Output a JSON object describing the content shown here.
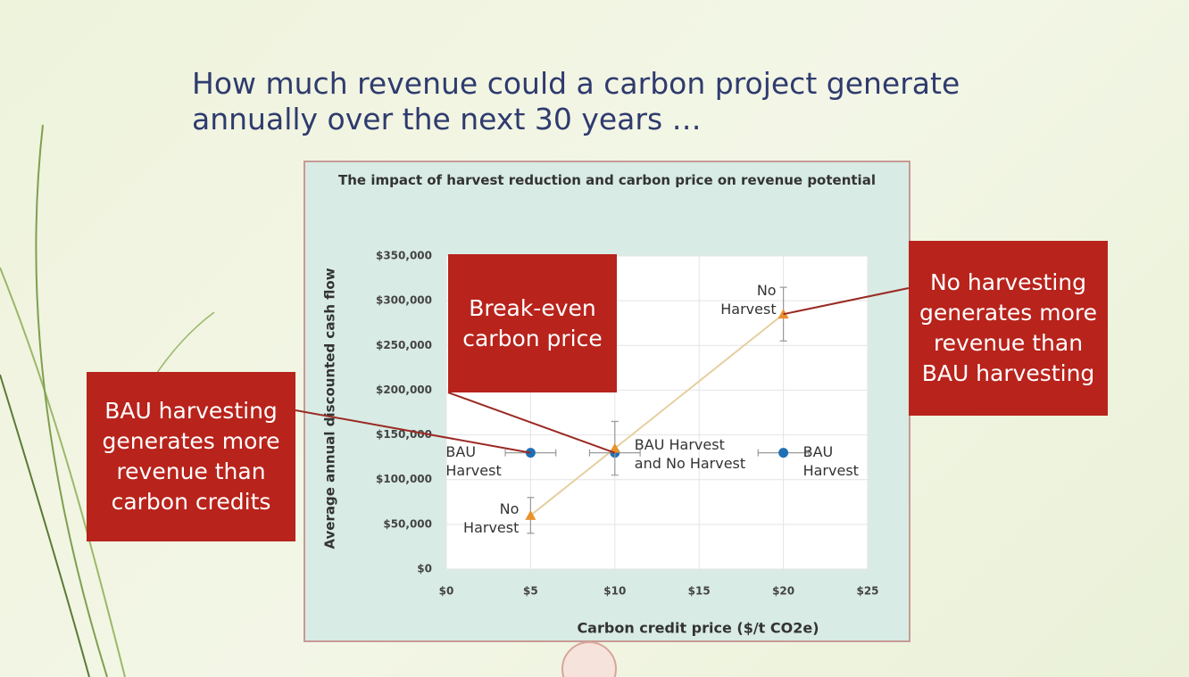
{
  "slide": {
    "title": "How much revenue could a carbon project generate annually over the next 30 years …",
    "callouts": [
      "BAU harvesting generates more revenue than carbon credits",
      "Break-even carbon price",
      "No harvesting generates more revenue than BAU harvesting"
    ]
  },
  "chart_data": {
    "type": "scatter",
    "title": "The impact of harvest reduction and carbon price on revenue potential",
    "x_label": "Carbon credit price ($/t CO2e)",
    "y_label": "Average annual discounted cash flow",
    "xlim": [
      0,
      25
    ],
    "xticks": [
      {
        "value": 0,
        "label": "$0"
      },
      {
        "value": 5,
        "label": "$5"
      },
      {
        "value": 10,
        "label": "$10"
      },
      {
        "value": 15,
        "label": "$15"
      },
      {
        "value": 20,
        "label": "$20"
      },
      {
        "value": 25,
        "label": "$25"
      }
    ],
    "ylim": [
      0,
      350000
    ],
    "yticks": [
      {
        "value": 0,
        "label": "$0"
      },
      {
        "value": 50000,
        "label": "$50,000"
      },
      {
        "value": 100000,
        "label": "$100,000"
      },
      {
        "value": 150000,
        "label": "$150,000"
      },
      {
        "value": 200000,
        "label": "$200,000"
      },
      {
        "value": 250000,
        "label": "$250,000"
      },
      {
        "value": 300000,
        "label": "$300,000"
      },
      {
        "value": 350000,
        "label": "$350,000"
      }
    ],
    "grid": true,
    "series": [
      {
        "name": "BAU Harvest",
        "color": "#1f6fb5",
        "marker": "circle",
        "x": [
          5,
          10,
          20
        ],
        "values": [
          130000,
          130000,
          130000
        ],
        "xerr": [
          1.5,
          1.5,
          1.5
        ],
        "labels": [
          "BAU Harvest",
          "BAU Harvest and No Harvest",
          "BAU Harvest"
        ]
      },
      {
        "name": "No Harvest",
        "color": "#e8922b",
        "marker": "triangle",
        "line_color": "#e6cfa0",
        "x": [
          5,
          10,
          20
        ],
        "values": [
          60000,
          135000,
          285000
        ],
        "yerr": [
          20000,
          30000,
          30000
        ],
        "labels": [
          "No Harvest",
          null,
          "No Harvest"
        ]
      }
    ]
  }
}
